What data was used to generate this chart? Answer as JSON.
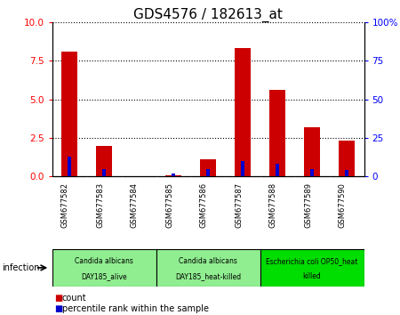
{
  "title": "GDS4576 / 182613_at",
  "samples": [
    "GSM677582",
    "GSM677583",
    "GSM677584",
    "GSM677585",
    "GSM677586",
    "GSM677587",
    "GSM677588",
    "GSM677589",
    "GSM677590"
  ],
  "count_values": [
    8.1,
    2.0,
    0.0,
    0.05,
    1.1,
    8.3,
    5.6,
    3.2,
    2.3
  ],
  "percentile_values": [
    13,
    5,
    0,
    2,
    5,
    10,
    8,
    5,
    4
  ],
  "ylim_left": [
    0,
    10
  ],
  "ylim_right": [
    0,
    100
  ],
  "yticks_left": [
    0,
    2.5,
    5,
    7.5,
    10
  ],
  "yticks_right": [
    0,
    25,
    50,
    75,
    100
  ],
  "ytick_labels_right": [
    "0",
    "25",
    "50",
    "75",
    "100%"
  ],
  "count_bar_width": 0.45,
  "percentile_bar_width": 0.12,
  "groups": [
    {
      "label1": "Candida albicans",
      "label2": "DAY185_alive",
      "start": 0,
      "end": 3,
      "color": "#90EE90"
    },
    {
      "label1": "Candida albicans",
      "label2": "DAY185_heat-killed",
      "start": 3,
      "end": 6,
      "color": "#90EE90"
    },
    {
      "label1": "Escherichia coli OP50_heat",
      "label2": "killed",
      "start": 6,
      "end": 9,
      "color": "#00DD00"
    }
  ],
  "factor_label": "infection",
  "count_color": "#CC0000",
  "percentile_color": "#0000CC",
  "tick_label_area_color": "#C8C8C8",
  "title_fontsize": 11,
  "tick_fontsize": 7.5,
  "legend_fontsize": 7
}
